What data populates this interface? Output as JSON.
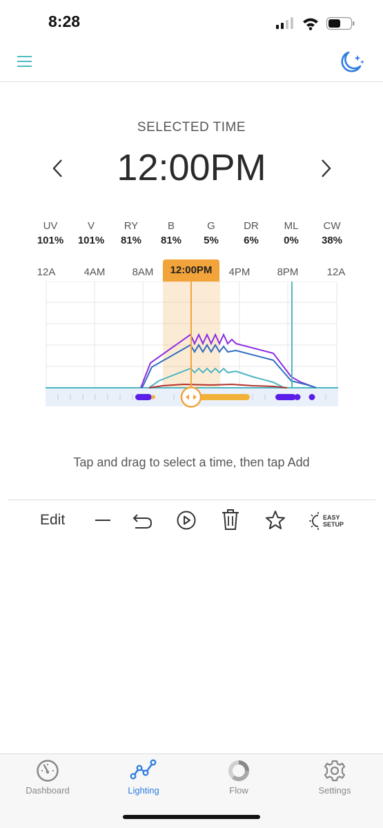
{
  "status_bar": {
    "time": "8:28"
  },
  "selected_time": {
    "label": "SELECTED TIME",
    "value": "12:00PM"
  },
  "channels": [
    {
      "name": "UV",
      "value": "101%"
    },
    {
      "name": "V",
      "value": "101%"
    },
    {
      "name": "RY",
      "value": "81%"
    },
    {
      "name": "B",
      "value": "81%"
    },
    {
      "name": "G",
      "value": "5%"
    },
    {
      "name": "DR",
      "value": "6%"
    },
    {
      "name": "ML",
      "value": "0%"
    },
    {
      "name": "CW",
      "value": "38%"
    }
  ],
  "timeline_ticks": [
    "12A",
    "4AM",
    "8AM",
    "12:00PM",
    "4PM",
    "8PM",
    "12A"
  ],
  "hint": "Tap and drag to select a time, then tap Add",
  "toolbar": {
    "edit_label": "Edit",
    "easy_setup_line1": "EASY",
    "easy_setup_line2": "SETUP"
  },
  "tabs": [
    {
      "label": "Dashboard",
      "active": false
    },
    {
      "label": "Lighting",
      "active": true
    },
    {
      "label": "Flow",
      "active": false
    },
    {
      "label": "Settings",
      "active": false
    }
  ],
  "colors": {
    "accent": "#2f7de0",
    "teal": "#4bbcc0",
    "selection": "#f2a33a",
    "purple_series": "#8a2be2",
    "blue_series": "#2f6cc0",
    "teal_series": "#4bb5c0",
    "red_series": "#b0302a"
  }
}
